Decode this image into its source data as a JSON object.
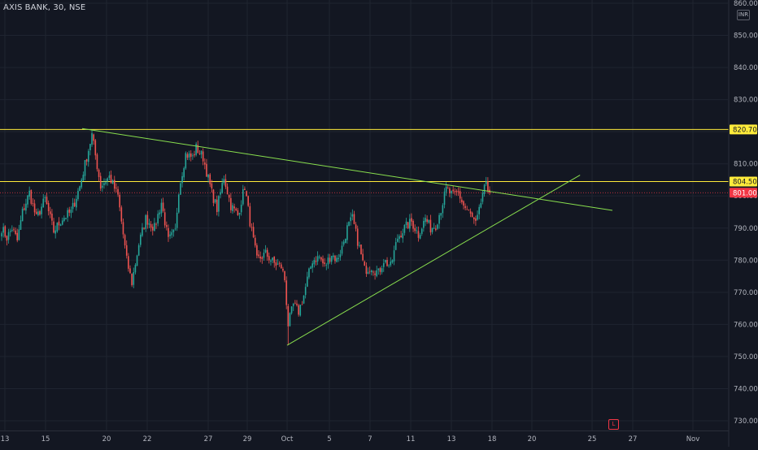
{
  "header": {
    "symbol": "AXIS BANK, 30, NSE"
  },
  "axis": {
    "currency": "INR",
    "scale_mark": "L"
  },
  "chart_data": {
    "type": "candlestick",
    "symbol": "AXIS BANK",
    "interval": "30",
    "exchange": "NSE",
    "currency": "INR",
    "ylim": [
      727,
      861
    ],
    "y_ticks": [
      "860.00",
      "850.00",
      "840.00",
      "830.00",
      "820.00",
      "810.00",
      "800.00",
      "790.00",
      "780.00",
      "770.00",
      "760.00",
      "750.00",
      "740.00",
      "730.00"
    ],
    "x_ticks": [
      "13",
      "15",
      "20",
      "22",
      "27",
      "29",
      "Oct",
      "5",
      "7",
      "11",
      "13",
      "18",
      "20",
      "25",
      "27",
      "Nov"
    ],
    "x_tick_dates": [
      "2022-09-13",
      "2022-09-15",
      "2022-09-20",
      "2022-09-22",
      "2022-09-27",
      "2022-09-29",
      "2022-10-01",
      "2022-10-05",
      "2022-10-07",
      "2022-10-11",
      "2022-10-13",
      "2022-10-18",
      "2022-10-20",
      "2022-10-25",
      "2022-10-27",
      "2022-11-01"
    ],
    "horizontal_lines": [
      {
        "price": 820.7,
        "label": "820.70",
        "color": "#ffeb3b"
      },
      {
        "price": 804.5,
        "label": "804.50",
        "color": "#ffeb3b"
      }
    ],
    "last_price": {
      "price": 801.0,
      "label": "801.00",
      "color": "#f23645"
    },
    "trendlines": [
      {
        "color": "#89e04e",
        "from": {
          "date": "2022-09-18",
          "price": 821
        },
        "to": {
          "date": "2022-10-26",
          "price": 795.5
        }
      },
      {
        "color": "#89e04e",
        "from": {
          "date": "2022-10-01",
          "price": 753.5
        },
        "to": {
          "date": "2022-10-24",
          "price": 806.5
        }
      }
    ],
    "waypoints": [
      [
        0,
        790
      ],
      [
        3,
        787
      ],
      [
        6,
        790
      ],
      [
        9,
        786
      ],
      [
        12,
        795
      ],
      [
        16,
        801
      ],
      [
        20,
        793
      ],
      [
        25,
        799
      ],
      [
        30,
        789
      ],
      [
        35,
        793
      ],
      [
        40,
        795
      ],
      [
        45,
        803
      ],
      [
        52,
        819
      ],
      [
        57,
        803
      ],
      [
        62,
        806
      ],
      [
        67,
        800
      ],
      [
        72,
        780
      ],
      [
        75,
        773
      ],
      [
        79,
        785
      ],
      [
        83,
        793
      ],
      [
        88,
        790
      ],
      [
        92,
        798
      ],
      [
        96,
        786
      ],
      [
        100,
        789
      ],
      [
        102,
        802
      ],
      [
        106,
        813
      ],
      [
        110,
        812
      ],
      [
        112,
        815
      ],
      [
        116,
        812
      ],
      [
        121,
        801
      ],
      [
        124,
        796
      ],
      [
        128,
        806
      ],
      [
        132,
        797
      ],
      [
        136,
        794
      ],
      [
        140,
        803
      ],
      [
        143,
        792
      ],
      [
        147,
        780
      ],
      [
        152,
        782
      ],
      [
        157,
        779
      ],
      [
        161,
        778
      ],
      [
        163,
        774
      ],
      [
        165,
        760
      ],
      [
        168,
        766
      ],
      [
        171,
        764
      ],
      [
        174,
        769
      ],
      [
        176,
        774
      ],
      [
        179,
        780
      ],
      [
        183,
        781
      ],
      [
        186,
        778
      ],
      [
        190,
        782
      ],
      [
        193,
        780
      ],
      [
        196,
        784
      ],
      [
        199,
        790
      ],
      [
        202,
        793
      ],
      [
        205,
        786
      ],
      [
        209,
        777
      ],
      [
        213,
        778
      ],
      [
        217,
        776
      ],
      [
        220,
        780
      ],
      [
        224,
        778
      ],
      [
        228,
        787
      ],
      [
        232,
        790
      ],
      [
        236,
        792
      ],
      [
        240,
        788
      ],
      [
        244,
        793
      ],
      [
        247,
        790
      ],
      [
        250,
        791
      ],
      [
        253,
        796
      ],
      [
        256,
        802
      ],
      [
        260,
        800
      ],
      [
        263,
        801
      ],
      [
        266,
        797
      ],
      [
        270,
        794
      ],
      [
        273,
        791
      ],
      [
        275,
        795
      ],
      [
        277,
        801
      ],
      [
        279,
        803
      ],
      [
        281,
        801
      ]
    ],
    "candle_count": 282
  }
}
